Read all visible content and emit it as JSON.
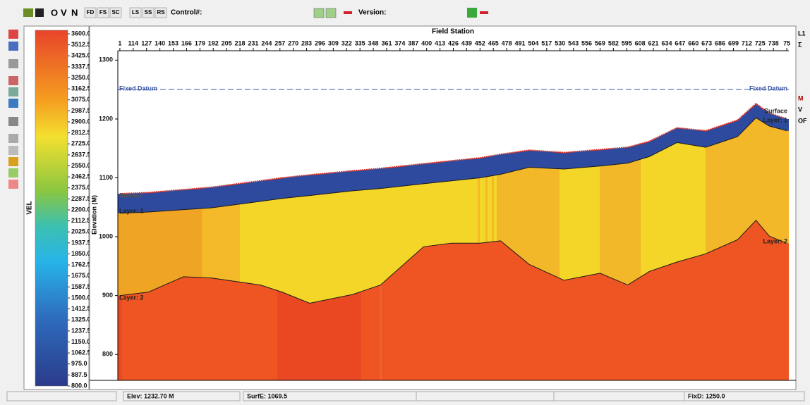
{
  "toolbar": {
    "buttons": [
      "O",
      "V",
      "N"
    ],
    "sub_buttons": [
      "FD",
      "FS",
      "SC",
      "LS",
      "SS",
      "RS"
    ],
    "control_label": "Control#:",
    "version_label": "Version:"
  },
  "colorbar": {
    "label": "VEL",
    "labels": [
      "3600.0",
      "3512.5",
      "3425.0",
      "3337.5",
      "3250.0",
      "3162.5",
      "3075.0",
      "2987.5",
      "2900.0",
      "2812.5",
      "2725.0",
      "2637.5",
      "2550.0",
      "2462.5",
      "2375.0",
      "2287.5",
      "2200.0",
      "2112.5",
      "2025.0",
      "1937.5",
      "1850.0",
      "1762.5",
      "1675.0",
      "1587.5",
      "1500.0",
      "1412.5",
      "1325.0",
      "1237.5",
      "1150.0",
      "1062.5",
      "975.0",
      "887.5",
      "800.0"
    ]
  },
  "plot": {
    "type": "line",
    "title": "Field Station",
    "y_label": "Elevation (M)",
    "xlim": [
      99,
      753
    ],
    "ylim": [
      756,
      1316
    ],
    "xticks": [
      {
        "value": 101,
        "label": "1"
      },
      114,
      127,
      140,
      153,
      166,
      179,
      192,
      205,
      218,
      231,
      244,
      257,
      270,
      283,
      296,
      309,
      322,
      335,
      348,
      361,
      374,
      387,
      400,
      413,
      426,
      439,
      452,
      465,
      478,
      491,
      504,
      517,
      530,
      543,
      556,
      569,
      582,
      595,
      608,
      621,
      634,
      647,
      660,
      673,
      686,
      699,
      712,
      725,
      738,
      {
        "value": 751,
        "label": "75"
      }
    ],
    "yticks": [
      800,
      900,
      1000,
      1100,
      1200,
      1300
    ],
    "x": [
      101,
      129,
      163,
      190,
      238,
      259,
      286,
      328,
      355,
      397,
      424,
      452,
      472,
      500,
      534,
      569,
      596,
      617,
      644,
      672,
      703,
      721,
      734,
      751
    ],
    "series": [
      {
        "name": "Surface",
        "color": "#d8342a",
        "values": [
          1073,
          1075,
          1080,
          1084,
          1095,
          1100,
          1105,
          1112,
          1116,
          1124,
          1129,
          1134,
          1140,
          1147,
          1143,
          1148,
          1152,
          1162,
          1185,
          1180,
          1198,
          1226,
          1210,
          1200
        ]
      },
      {
        "name": "Layer: 1",
        "color": "#1a1a1a",
        "values": [
          1040,
          1042,
          1046,
          1049,
          1060,
          1065,
          1070,
          1078,
          1082,
          1090,
          1095,
          1100,
          1106,
          1118,
          1115,
          1120,
          1125,
          1136,
          1160,
          1152,
          1170,
          1202,
          1188,
          1180
        ]
      },
      {
        "name": "Layer: 2",
        "color": "#1a1a1a",
        "values": [
          900,
          906,
          932,
          930,
          918,
          906,
          887,
          902,
          918,
          983,
          989,
          989,
          993,
          953,
          926,
          938,
          918,
          941,
          957,
          971,
          995,
          1028,
          1001,
          989
        ]
      }
    ],
    "datum": {
      "label": "Fixed Datum",
      "value": 1250,
      "color": "#3a55a8"
    }
  },
  "status": [
    "Elev: 1232.70 M",
    "SurfE: 1069.5",
    "FixD: 1250.0"
  ],
  "right_toolbar": [
    "L1",
    "Σ",
    "M",
    "V",
    "OF"
  ]
}
